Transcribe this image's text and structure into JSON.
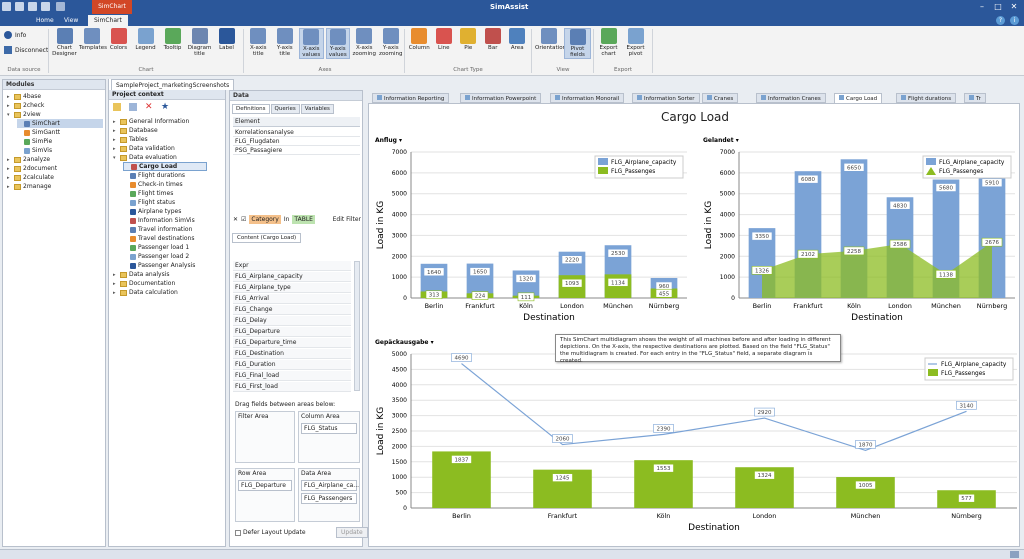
{
  "app_title": "SimAssist",
  "context_tab": "SimChart",
  "tabs": [
    "Home",
    "View",
    "SimChart"
  ],
  "ribbon": {
    "info": "Info",
    "disconnect": "Disconnect",
    "group_datasource": "Data source",
    "chart_buttons": [
      {
        "label": "Chart\nDesigner",
        "name": "chart-designer-button"
      },
      {
        "label": "Templates",
        "name": "templates-button"
      },
      {
        "label": "Colors",
        "name": "colors-button"
      },
      {
        "label": "Legend",
        "name": "legend-button"
      },
      {
        "label": "Tooltip",
        "name": "tooltip-button"
      },
      {
        "label": "Diagram\ntitle",
        "name": "diagram-title-button"
      },
      {
        "label": "Label",
        "name": "label-button"
      }
    ],
    "group_chart": "Chart",
    "axes_buttons": [
      {
        "label": "X-axis\ntitle",
        "name": "x-axis-title-button"
      },
      {
        "label": "Y-axis\ntitle",
        "name": "y-axis-title-button"
      },
      {
        "label": "X-axis\nvalues",
        "name": "x-axis-values-button"
      },
      {
        "label": "Y-axis\nvalues",
        "name": "y-axis-values-button"
      },
      {
        "label": "X-axis\nzooming",
        "name": "x-axis-zooming-button"
      },
      {
        "label": "Y-axis\nzooming",
        "name": "y-axis-zooming-button"
      }
    ],
    "group_axes": "Axes",
    "type_buttons": [
      {
        "label": "Column",
        "name": "column-button"
      },
      {
        "label": "Line",
        "name": "line-button"
      },
      {
        "label": "Pie",
        "name": "pie-button"
      },
      {
        "label": "Bar",
        "name": "bar-button"
      },
      {
        "label": "Area",
        "name": "area-button"
      }
    ],
    "group_type": "Chart Type",
    "view_buttons": [
      {
        "label": "Orientation",
        "name": "orientation-button"
      },
      {
        "label": "Pivot\nfields",
        "name": "pivot-fields-button"
      }
    ],
    "group_view": "View",
    "export_buttons": [
      {
        "label": "Export\nchart",
        "name": "export-chart-button"
      },
      {
        "label": "Export\npivot",
        "name": "export-pivot-button"
      }
    ],
    "group_export": "Export"
  },
  "modules": {
    "title": "Modules",
    "items": [
      "4base",
      "2check",
      "2view",
      "SimChart",
      "SimGantt",
      "SimPie",
      "SimVis",
      "2analyze",
      "2document",
      "2calculate",
      "2manage"
    ]
  },
  "project": {
    "tab": "SampleProject_marketingScreenshots",
    "title": "Project context",
    "items": [
      "General Information",
      "Database",
      "Tables",
      "Data validation",
      "Data evaluation",
      "Cargo Load",
      "Flight durations",
      "Check-in times",
      "Flight times",
      "Flight status",
      "Airplane types",
      "Information SimVis",
      "Travel information",
      "Travel destinations",
      "Passenger load 1",
      "Passenger load 2",
      "Passenger Analysis",
      "Data analysis",
      "Documentation",
      "Data calculation"
    ]
  },
  "data_panel": {
    "title": "Data",
    "subtabs": [
      "Definitions",
      "Queries",
      "Variables"
    ],
    "element_header": "Element",
    "elements": [
      "Korrelationsanalyse",
      "FLG_Flugdaten",
      "PSG_Passagiere"
    ],
    "filter": {
      "category": "Category",
      "in": "In",
      "table": "TABLE",
      "edit": "Edit Filter"
    },
    "content_tab": "Content (Cargo Load)",
    "fields": [
      "Expr",
      "FLG_Airplane_capacity",
      "FLG_Airplane_type",
      "FLG_Arrival",
      "FLG_Change",
      "FLG_Delay",
      "FLG_Departure",
      "FLG_Departure_time",
      "FLG_Destination",
      "FLG_Duration",
      "FLG_Final_load",
      "FLG_First_load"
    ],
    "drag_hint": "Drag fields between areas below:",
    "filter_area": "Filter Area",
    "column_area": "Column Area",
    "column_item": "FLG_Status",
    "row_area": "Row Area",
    "row_item": "FLG_Departure",
    "data_area": "Data Area",
    "data_items": [
      "FLG_Airplane_ca...",
      "FLG_Passengers"
    ],
    "defer": "Defer Layout Update",
    "update": "Update"
  },
  "doc_tabs": [
    "Information Reporting",
    "Information Powerpoint",
    "Information Monorail",
    "Information Sorter",
    "Cranes",
    "Information Cranes",
    "Cargo Load",
    "Flight durations",
    "Tr"
  ],
  "chart_title": "Cargo Load",
  "chart_data": [
    {
      "type": "bar",
      "title": "Anflug",
      "categories": [
        "Berlin",
        "Frankfurt",
        "Köln",
        "London",
        "München",
        "Nürnberg"
      ],
      "series": [
        {
          "name": "FLG_Airplane_capacity",
          "values": [
            1640,
            1650,
            1320,
            2220,
            2530,
            960
          ]
        },
        {
          "name": "FLG_Passenges",
          "values": [
            313,
            224,
            111,
            1093,
            1134,
            455
          ]
        }
      ],
      "xlabel": "Destination",
      "ylabel": "Load in KG",
      "ylim": [
        0,
        7000
      ],
      "yticks": [
        0,
        1000,
        2000,
        3000,
        4000,
        5000,
        6000,
        7000
      ],
      "legend": "top-right",
      "colors": [
        "#7ba3d6",
        "#8cbc21"
      ]
    },
    {
      "type": "bar",
      "title": "Gelandet",
      "categories": [
        "Berlin",
        "Frankfurt",
        "Köln",
        "London",
        "München",
        "Nürnberg"
      ],
      "series": [
        {
          "name": "FLG_Airplane_capacity",
          "values": [
            3350,
            6080,
            6650,
            4830,
            5680,
            5910
          ]
        },
        {
          "name": "FLG_Passenges",
          "type": "area",
          "values": [
            1326,
            2102,
            2258,
            2586,
            1138,
            2676
          ]
        }
      ],
      "xlabel": "Destination",
      "ylabel": "Load in KG",
      "ylim": [
        0,
        7000
      ],
      "yticks": [
        0,
        1000,
        2000,
        3000,
        4000,
        5000,
        6000,
        7000
      ],
      "legend": "top-right",
      "colors": [
        "#7ba3d6",
        "#8cbc21"
      ]
    },
    {
      "type": "bar",
      "title": "Gepäckausgabe",
      "categories": [
        "Berlin",
        "Frankfurt",
        "Köln",
        "London",
        "München",
        "Nürnberg"
      ],
      "series": [
        {
          "name": "FLG_Airplane_capacity",
          "type": "line",
          "values": [
            4690,
            2060,
            2390,
            2920,
            1870,
            3140
          ]
        },
        {
          "name": "FLG_Passenges",
          "values": [
            1837,
            1245,
            1553,
            1324,
            1005,
            577
          ]
        }
      ],
      "xlabel": "Destination",
      "ylabel": "Load in KG",
      "ylim": [
        0,
        5000
      ],
      "yticks": [
        0,
        500,
        1000,
        1500,
        2000,
        2500,
        3000,
        3500,
        4000,
        4500,
        5000
      ],
      "legend": "top-right",
      "colors": [
        "#7ba3d6",
        "#8cbc21"
      ]
    }
  ],
  "tooltip": "This SimChart multidiagram shows the weight of all machines before and after loading in different depictions. On the X-axis, the respective destinations are plotted. Based on the field \"FLG_Status\" the multidiagram is created. For each entry in the \"FLG_Status\" field, a separate diagram is created."
}
